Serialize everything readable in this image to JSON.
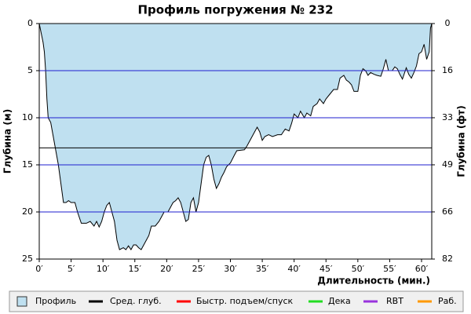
{
  "chart_data": {
    "type": "area",
    "title": "Профиль погружения № 232",
    "ylabel": "Глубина (м)",
    "y2label": "Глубина (фт)",
    "xlabel": "Длительность (мин.)",
    "xlim": [
      0,
      61.6
    ],
    "xticks": [
      {
        "value": 0,
        "label": "0′"
      },
      {
        "value": 5,
        "label": "5′"
      },
      {
        "value": 10,
        "label": "10′"
      },
      {
        "value": 15,
        "label": "15′"
      },
      {
        "value": 20,
        "label": "20′"
      },
      {
        "value": 25,
        "label": "25′"
      },
      {
        "value": 30,
        "label": "30′"
      },
      {
        "value": 35,
        "label": "35′"
      },
      {
        "value": 40,
        "label": "40′"
      },
      {
        "value": 45,
        "label": "45′"
      },
      {
        "value": 50,
        "label": "50′"
      },
      {
        "value": 55,
        "label": "55′"
      },
      {
        "value": 60,
        "label": "60′"
      }
    ],
    "ylim": [
      25,
      0
    ],
    "yticks": [
      0,
      5,
      10,
      15,
      20,
      25
    ],
    "y2lim": [
      82.02,
      0
    ],
    "y2ticks": [
      {
        "value": 0,
        "label": "0"
      },
      {
        "value": 16.4,
        "label": "16"
      },
      {
        "value": 32.8,
        "label": "33"
      },
      {
        "value": 49.2,
        "label": "49"
      },
      {
        "value": 65.6,
        "label": "66"
      },
      {
        "value": 82.02,
        "label": "82"
      }
    ],
    "grid": true,
    "grid_color": "#1f1fcf",
    "x": [
      0,
      0.3,
      0.6,
      0.8,
      1,
      1.2,
      1.4,
      1.8,
      2.2,
      2.6,
      3,
      3.4,
      3.8,
      4.2,
      4.6,
      5,
      5.6,
      6,
      6.6,
      7.4,
      8,
      8.6,
      9,
      9.4,
      9.8,
      10.2,
      10.6,
      11,
      11.4,
      11.8,
      12.2,
      12.6,
      13.2,
      13.6,
      14,
      14.4,
      14.8,
      15.2,
      15.6,
      16,
      16.4,
      16.8,
      17.2,
      17.6,
      18.2,
      18.8,
      19.2,
      19.6,
      20.2,
      20.6,
      21,
      21.4,
      21.8,
      22.2,
      22.6,
      23,
      23.4,
      23.8,
      24.2,
      24.6,
      25,
      25.4,
      25.8,
      26.2,
      26.6,
      27,
      27.4,
      27.8,
      28.2,
      28.6,
      29,
      29.4,
      30,
      30.6,
      31,
      32.2,
      32.6,
      33,
      33.4,
      33.8,
      34.2,
      34.6,
      35,
      35.4,
      36,
      36.6,
      37.4,
      38,
      38.6,
      39.2,
      39.6,
      40,
      40.6,
      41,
      41.6,
      42,
      42.6,
      43,
      43.6,
      44,
      44.6,
      45,
      45.6,
      46.2,
      46.8,
      47.2,
      47.8,
      48.2,
      48.6,
      49,
      49.4,
      50,
      50.4,
      50.8,
      51.2,
      51.6,
      52,
      52.6,
      53,
      53.6,
      54,
      54.4,
      54.8,
      55.4,
      55.8,
      56.2,
      56.6,
      57,
      57.6,
      58,
      58.4,
      58.8,
      59.2,
      59.6,
      60,
      60.4,
      60.8,
      61.2,
      61.4,
      61.6
    ],
    "series": [
      {
        "name": "Профиль",
        "color": "#bfe0f0",
        "values": [
          0,
          1,
          2,
          3,
          5,
          8,
          10,
          10.5,
          12,
          13.5,
          15,
          17,
          19,
          19,
          18.8,
          19,
          19,
          20,
          21.2,
          21.2,
          21,
          21.5,
          21,
          21.6,
          21,
          20,
          19.3,
          19,
          20,
          21,
          23,
          24,
          23.8,
          24,
          23.6,
          24,
          23.5,
          23.5,
          23.8,
          24,
          23.5,
          23,
          22.5,
          21.5,
          21.5,
          21,
          20.5,
          20,
          20,
          19.5,
          19,
          18.8,
          18.5,
          19,
          20,
          21,
          20.8,
          19,
          18.5,
          20,
          19,
          17,
          15,
          14.2,
          14,
          15,
          16.5,
          17.5,
          17,
          16.3,
          15.8,
          15.2,
          14.8,
          14,
          13.5,
          13.4,
          13,
          12.5,
          12,
          11.5,
          11,
          11.5,
          12.4,
          12,
          11.8,
          12,
          11.8,
          11.8,
          11.2,
          11.4,
          10.6,
          9.6,
          10,
          9.3,
          10,
          9.5,
          9.8,
          8.8,
          8.5,
          8,
          8.5,
          8,
          7.5,
          7,
          7,
          5.8,
          5.5,
          6,
          6.2,
          6.5,
          7.2,
          7.2,
          5.5,
          4.8,
          5,
          5.5,
          5.2,
          5.4,
          5.5,
          5.6,
          4.8,
          3.8,
          5,
          5,
          4.6,
          4.8,
          5.4,
          5.9,
          4.7,
          5.4,
          5.8,
          5.2,
          4.5,
          3.2,
          3,
          2.2,
          3.8,
          3,
          0.5,
          0
        ]
      },
      {
        "name": "Сред. глуб.",
        "color": "#000000",
        "value": 13.2
      },
      {
        "name": "Быстр. подъем/спуск",
        "color": "#ff0000"
      },
      {
        "name": "Дека",
        "color": "#22dd22"
      },
      {
        "name": "RBT",
        "color": "#9933dd"
      },
      {
        "name": "Раб.",
        "color": "#ff9900"
      }
    ]
  }
}
